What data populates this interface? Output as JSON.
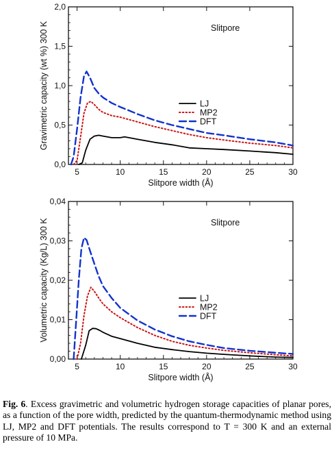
{
  "charts": [
    {
      "type": "line",
      "annotation": "Slitpore",
      "xlabel": "Slitpore width (Å)",
      "ylabel": "Gravimetric capacity (wt %) 300 K",
      "xlim": [
        4,
        30
      ],
      "ylim": [
        0,
        2
      ],
      "xticks": [
        "5",
        "10",
        "15",
        "20",
        "25",
        "30"
      ],
      "xtick_values": [
        5,
        10,
        15,
        20,
        25,
        30
      ],
      "yticks": [
        "0,0",
        "0,5",
        "1,0",
        "1,5",
        "2,0"
      ],
      "ytick_values": [
        0,
        0.5,
        1,
        1.5,
        2
      ],
      "legend_position": "center-right",
      "series": [
        {
          "name": "LJ",
          "color": "#000000",
          "style": "solid",
          "x": [
            5.2,
            5.6,
            6.0,
            6.5,
            7.0,
            7.5,
            8,
            9,
            10,
            10.5,
            11,
            12,
            14,
            16,
            18,
            20,
            22,
            25,
            28,
            30
          ],
          "y": [
            0.0,
            0.02,
            0.18,
            0.32,
            0.36,
            0.37,
            0.36,
            0.34,
            0.34,
            0.35,
            0.34,
            0.32,
            0.28,
            0.25,
            0.21,
            0.2,
            0.19,
            0.17,
            0.15,
            0.13
          ]
        },
        {
          "name": "MP2",
          "color": "#cc1111",
          "style": "dotted",
          "x": [
            4.6,
            5.0,
            5.4,
            5.8,
            6.2,
            6.6,
            7.0,
            7.5,
            8,
            9,
            10,
            12,
            14,
            16,
            18,
            20,
            22,
            25,
            28,
            30
          ],
          "y": [
            0.0,
            0.05,
            0.35,
            0.65,
            0.78,
            0.8,
            0.76,
            0.7,
            0.66,
            0.62,
            0.6,
            0.54,
            0.48,
            0.43,
            0.38,
            0.34,
            0.31,
            0.27,
            0.24,
            0.21
          ]
        },
        {
          "name": "DFT",
          "color": "#1133cc",
          "style": "dashed",
          "x": [
            4.3,
            4.6,
            5.0,
            5.4,
            5.8,
            6.1,
            6.5,
            7.0,
            7.5,
            8,
            9,
            10,
            12,
            14,
            16,
            18,
            20,
            22,
            25,
            28,
            30
          ],
          "y": [
            0.0,
            0.1,
            0.45,
            0.85,
            1.12,
            1.18,
            1.1,
            0.97,
            0.9,
            0.85,
            0.78,
            0.73,
            0.64,
            0.56,
            0.5,
            0.45,
            0.4,
            0.37,
            0.32,
            0.28,
            0.24
          ]
        }
      ]
    },
    {
      "type": "line",
      "annotation": "Slitpore",
      "xlabel": "Slitpore width (Å)",
      "ylabel": "Volumetric capacity (Kg/L) 300 K",
      "xlim": [
        4,
        30
      ],
      "ylim": [
        0,
        0.04
      ],
      "xticks": [
        "5",
        "10",
        "15",
        "20",
        "25",
        "30"
      ],
      "xtick_values": [
        5,
        10,
        15,
        20,
        25,
        30
      ],
      "yticks": [
        "0,00",
        "0,01",
        "0,02",
        "0,03",
        "0,04"
      ],
      "ytick_values": [
        0,
        0.01,
        0.02,
        0.03,
        0.04
      ],
      "legend_position": "center-right",
      "series": [
        {
          "name": "LJ",
          "color": "#000000",
          "style": "solid",
          "x": [
            5.5,
            6.0,
            6.4,
            6.8,
            7.2,
            7.6,
            8,
            9,
            10,
            12,
            14,
            16,
            18,
            20,
            22,
            25,
            28,
            30
          ],
          "y": [
            0.0,
            0.0035,
            0.0072,
            0.0078,
            0.0077,
            0.0073,
            0.0068,
            0.0058,
            0.0052,
            0.004,
            0.003,
            0.0024,
            0.0019,
            0.0015,
            0.0012,
            0.0008,
            0.0005,
            0.0004
          ]
        },
        {
          "name": "MP2",
          "color": "#cc1111",
          "style": "dotted",
          "x": [
            5.0,
            5.4,
            5.8,
            6.2,
            6.6,
            7.0,
            7.5,
            8,
            9,
            10,
            12,
            14,
            16,
            18,
            20,
            22,
            25,
            28,
            30
          ],
          "y": [
            0.0,
            0.004,
            0.011,
            0.016,
            0.0182,
            0.0172,
            0.0155,
            0.014,
            0.012,
            0.0105,
            0.008,
            0.006,
            0.0045,
            0.0035,
            0.0028,
            0.0022,
            0.0016,
            0.0011,
            0.0008
          ]
        },
        {
          "name": "DFT",
          "color": "#1133cc",
          "style": "dashed",
          "x": [
            4.6,
            4.9,
            5.2,
            5.5,
            5.8,
            6.1,
            6.5,
            7.0,
            7.5,
            8,
            9,
            10,
            12,
            14,
            16,
            18,
            20,
            22,
            25,
            28,
            30
          ],
          "y": [
            0.0,
            0.01,
            0.02,
            0.028,
            0.0308,
            0.0302,
            0.0275,
            0.0242,
            0.021,
            0.0185,
            0.0155,
            0.013,
            0.0098,
            0.0075,
            0.0058,
            0.0045,
            0.0036,
            0.0028,
            0.0021,
            0.0016,
            0.0013
          ]
        }
      ]
    }
  ],
  "caption": {
    "label": "Fig. 6",
    "text": ". Excess gravimetric and volumetric hydrogen storage capacities of planar pores, as a function of the pore width, predicted by the quantum-thermodynamic method using LJ, MP2 and DFT potentials. The results correspond to T = 300 K and an external pressure of 10 MPa."
  }
}
